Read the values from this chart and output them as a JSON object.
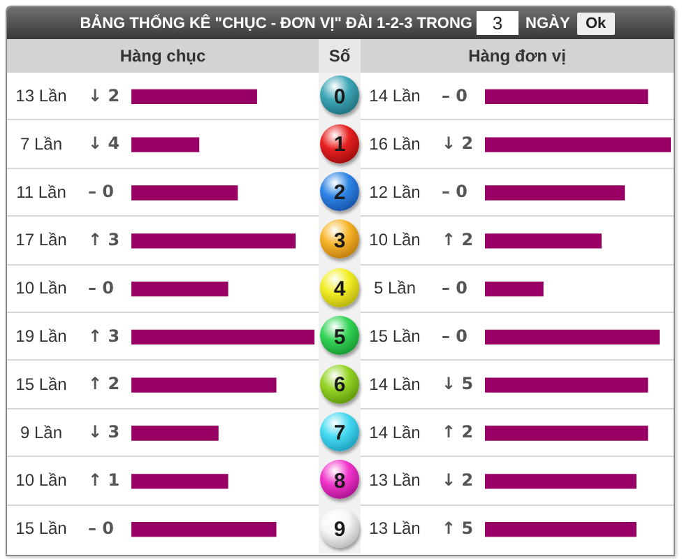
{
  "chart_data": [
    {
      "type": "other",
      "title": "BẢNG THỐNG KÊ \"CHỤC - ĐƠN VỊ\" ĐÀI 1-2-3 TRONG",
      "annotations": [
        "3",
        "NGÀY",
        "Ok"
      ]
    },
    {
      "type": "bar",
      "orientation": "horizontal",
      "title": "Hàng chục",
      "categories": [
        "0",
        "1",
        "2",
        "3",
        "4",
        "5",
        "6",
        "7",
        "8",
        "9"
      ],
      "values": [
        13,
        7,
        11,
        17,
        10,
        19,
        15,
        9,
        10,
        15
      ],
      "value_labels": [
        "13 Lần",
        "7 Lần",
        "11 Lần",
        "17 Lần",
        "10 Lần",
        "19 Lần",
        "15 Lần",
        "9 Lần",
        "10 Lần",
        "15 Lần"
      ],
      "color": "#990066",
      "xlim": [
        0,
        19
      ],
      "tick_labels": false,
      "annotations": [
        "↓ 2",
        "↓ 4",
        "– 0",
        "↑ 3",
        "– 0",
        "↑ 3",
        "↑ 2",
        "↓ 3",
        "↑ 1",
        "– 0"
      ]
    },
    {
      "type": "bar",
      "orientation": "horizontal",
      "title": "Hàng đơn vị",
      "ylabel": "Số",
      "categories": [
        "0",
        "1",
        "2",
        "3",
        "4",
        "5",
        "6",
        "7",
        "8",
        "9"
      ],
      "values": [
        14,
        16,
        12,
        10,
        5,
        15,
        14,
        14,
        13,
        13
      ],
      "value_labels": [
        "14 Lần",
        "16 Lần",
        "12 Lần",
        "10 Lần",
        "5 Lần",
        "15 Lần",
        "14 Lần",
        "14 Lần",
        "13 Lần",
        "13 Lần"
      ],
      "color": "#990066",
      "xlim": [
        0,
        16
      ],
      "tick_labels": "y",
      "annotations": [
        "– 0",
        "↓ 2",
        "– 0",
        "↑ 2",
        "– 0",
        "– 0",
        "↓ 5",
        "↑ 2",
        "↓ 2",
        "↑ 5"
      ]
    }
  ]
}
